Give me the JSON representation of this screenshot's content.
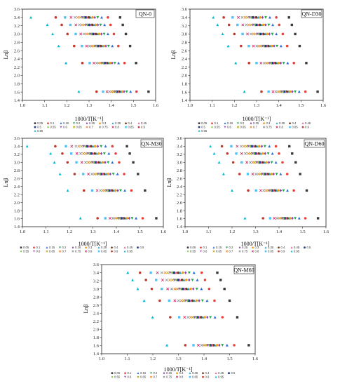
{
  "palette": {
    "0.05": "#3a3a3a",
    "0.1": "#e8413c",
    "0.15": "#2c6cdc",
    "0.2": "#1fa84a",
    "0.25": "#8e44ad",
    "0.3": "#f39c12",
    "0.35": "#2aa3c7",
    "0.4": "#6b3a1f",
    "0.45": "#f06292",
    "0.5": "#1a3d8f",
    "0.55": "#8bc34a",
    "0.6": "#9b59b6",
    "0.65": "#b5a000",
    "0.7": "#e67e22",
    "0.75": "#7f8c8d",
    "0.8": "#d81b60",
    "0.85": "#4fc3f7",
    "0.9": "#c0392b",
    "0.95": "#00bcd4"
  },
  "chart_data": [
    {
      "type": "scatter",
      "label": "QN-0",
      "xlabel": "1000/T[K⁻¹]",
      "ylabel": "Lnβ",
      "xlim": [
        1.0,
        1.6
      ],
      "ylim": [
        1.4,
        3.6
      ],
      "xticks": [
        "1.0",
        "1.1",
        "1.2",
        "1.3",
        "1.4",
        "1.5",
        "1.6"
      ],
      "yticks": [
        "1.4",
        "1.6",
        "1.8",
        "2.0",
        "2.2",
        "2.4",
        "2.6",
        "2.8",
        "3.0",
        "3.2",
        "3.4",
        "3.6"
      ],
      "lnbeta": [
        1.61,
        2.3,
        2.71,
        3.0,
        3.22,
        3.4
      ],
      "alpha": [
        "0.05",
        "0.1",
        "0.15",
        "0.2",
        "0.25",
        "0.3",
        "0.35",
        "0.4",
        "0.45",
        "0.5",
        "0.55",
        "0.6",
        "0.65",
        "0.7",
        "0.75",
        "0.8",
        "0.85",
        "0.9",
        "0.95"
      ],
      "x_at_lnbeta": [
        [
          1.568,
          1.514,
          1.487,
          1.47,
          1.458,
          1.449,
          1.442,
          1.436,
          1.43,
          1.425,
          1.42,
          1.415,
          1.409,
          1.402,
          1.393,
          1.381,
          1.363,
          1.334,
          1.254
        ],
        [
          1.512,
          1.46,
          1.433,
          1.416,
          1.404,
          1.395,
          1.388,
          1.381,
          1.375,
          1.37,
          1.364,
          1.358,
          1.352,
          1.344,
          1.335,
          1.322,
          1.303,
          1.27,
          1.196
        ],
        [
          1.485,
          1.432,
          1.405,
          1.388,
          1.376,
          1.367,
          1.359,
          1.352,
          1.346,
          1.34,
          1.334,
          1.328,
          1.321,
          1.313,
          1.303,
          1.289,
          1.268,
          1.233,
          1.163
        ],
        [
          1.466,
          1.412,
          1.385,
          1.368,
          1.356,
          1.346,
          1.338,
          1.331,
          1.324,
          1.318,
          1.311,
          1.305,
          1.298,
          1.289,
          1.278,
          1.263,
          1.24,
          1.203,
          1.136
        ],
        [
          1.452,
          1.397,
          1.37,
          1.352,
          1.34,
          1.33,
          1.322,
          1.314,
          1.307,
          1.3,
          1.293,
          1.286,
          1.278,
          1.269,
          1.257,
          1.241,
          1.216,
          1.177,
          1.112
        ],
        [
          1.44,
          1.385,
          1.357,
          1.339,
          1.326,
          1.316,
          1.307,
          1.299,
          1.291,
          1.284,
          1.276,
          1.269,
          1.26,
          1.25,
          1.237,
          1.219,
          1.192,
          1.15,
          1.038
        ]
      ]
    },
    {
      "type": "scatter",
      "label": "QN-D30",
      "xlabel": "1000/T[K⁻¹]",
      "ylabel": "Lnβ",
      "xlim": [
        1.0,
        1.6
      ],
      "ylim": [
        1.4,
        3.6
      ],
      "xticks": [
        "1.0",
        "1.1",
        "1.2",
        "1.3",
        "1.4",
        "1.5",
        "1.6"
      ],
      "yticks": [
        "1.4",
        "1.6",
        "1.8",
        "2.0",
        "2.2",
        "2.4",
        "2.6",
        "2.8",
        "3.0",
        "3.2",
        "3.4",
        "3.6"
      ],
      "lnbeta": [
        1.61,
        2.3,
        2.71,
        3.0,
        3.22,
        3.4
      ],
      "alpha": [
        "0.05",
        "0.1",
        "0.15",
        "0.2",
        "0.25",
        "0.3",
        "0.35",
        "0.4",
        "0.45",
        "0.5",
        "0.55",
        "0.6",
        "0.65",
        "0.7",
        "0.75",
        "0.8",
        "0.85",
        "0.9",
        "0.95"
      ],
      "x_at_lnbeta": [
        [
          1.575,
          1.52,
          1.492,
          1.474,
          1.461,
          1.451,
          1.443,
          1.436,
          1.43,
          1.424,
          1.418,
          1.412,
          1.405,
          1.397,
          1.387,
          1.374,
          1.354,
          1.322,
          1.245
        ],
        [
          1.524,
          1.468,
          1.44,
          1.422,
          1.409,
          1.399,
          1.391,
          1.384,
          1.377,
          1.371,
          1.365,
          1.359,
          1.352,
          1.344,
          1.334,
          1.32,
          1.3,
          1.266,
          1.206
        ],
        [
          1.494,
          1.438,
          1.41,
          1.392,
          1.379,
          1.369,
          1.361,
          1.353,
          1.346,
          1.34,
          1.333,
          1.327,
          1.32,
          1.311,
          1.301,
          1.286,
          1.265,
          1.23,
          1.172
        ],
        [
          1.474,
          1.418,
          1.389,
          1.371,
          1.358,
          1.348,
          1.339,
          1.331,
          1.324,
          1.317,
          1.31,
          1.303,
          1.295,
          1.286,
          1.275,
          1.259,
          1.237,
          1.2,
          1.147
        ],
        [
          1.459,
          1.402,
          1.373,
          1.355,
          1.341,
          1.331,
          1.322,
          1.314,
          1.306,
          1.299,
          1.292,
          1.284,
          1.276,
          1.266,
          1.254,
          1.238,
          1.214,
          1.176,
          1.124
        ],
        [
          1.446,
          1.389,
          1.36,
          1.341,
          1.327,
          1.316,
          1.307,
          1.298,
          1.29,
          1.283,
          1.275,
          1.267,
          1.258,
          1.248,
          1.235,
          1.218,
          1.192,
          1.152,
          1.105
        ]
      ]
    },
    {
      "type": "scatter",
      "label": "QN-M30",
      "xlabel": "1000/T[K⁻¹]",
      "ylabel": "Lnβ",
      "xlim": [
        1.0,
        1.6
      ],
      "ylim": [
        1.4,
        3.6
      ],
      "xticks": [
        "1.0",
        "1.1",
        "1.2",
        "1.3",
        "1.4",
        "1.5",
        "1.6"
      ],
      "yticks": [
        "1.4",
        "1.6",
        "1.8",
        "2.0",
        "2.2",
        "2.4",
        "2.6",
        "2.8",
        "3.0",
        "3.2",
        "3.4",
        "3.6"
      ],
      "lnbeta": [
        1.61,
        2.3,
        2.71,
        3.0,
        3.22,
        3.4
      ],
      "alpha": [
        "0.05",
        "0.1",
        "0.15",
        "0.2",
        "0.25",
        "0.3",
        "0.35",
        "0.4",
        "0.45",
        "0.5",
        "0.55",
        "0.6",
        "0.65",
        "0.7",
        "0.75",
        "0.8",
        "0.85",
        "0.9",
        "0.95"
      ],
      "x_at_lnbeta": [
        [
          1.57,
          1.512,
          1.484,
          1.467,
          1.455,
          1.446,
          1.439,
          1.432,
          1.426,
          1.421,
          1.415,
          1.409,
          1.403,
          1.395,
          1.386,
          1.373,
          1.353,
          1.32,
          1.247
        ],
        [
          1.522,
          1.464,
          1.436,
          1.418,
          1.406,
          1.396,
          1.388,
          1.381,
          1.375,
          1.369,
          1.363,
          1.357,
          1.35,
          1.342,
          1.332,
          1.318,
          1.297,
          1.262,
          1.193
        ],
        [
          1.492,
          1.433,
          1.405,
          1.387,
          1.374,
          1.364,
          1.356,
          1.348,
          1.342,
          1.335,
          1.329,
          1.322,
          1.315,
          1.306,
          1.296,
          1.281,
          1.259,
          1.222,
          1.16
        ],
        [
          1.472,
          1.412,
          1.383,
          1.365,
          1.352,
          1.342,
          1.333,
          1.325,
          1.318,
          1.311,
          1.304,
          1.297,
          1.289,
          1.28,
          1.269,
          1.253,
          1.23,
          1.192,
          1.136
        ],
        [
          1.457,
          1.397,
          1.368,
          1.349,
          1.336,
          1.325,
          1.316,
          1.308,
          1.3,
          1.293,
          1.285,
          1.278,
          1.27,
          1.26,
          1.248,
          1.232,
          1.208,
          1.17,
          1.12
        ],
        [
          1.445,
          1.383,
          1.354,
          1.335,
          1.321,
          1.31,
          1.301,
          1.292,
          1.284,
          1.276,
          1.268,
          1.26,
          1.251,
          1.24,
          1.228,
          1.21,
          1.185,
          1.14,
          1.02
        ]
      ]
    },
    {
      "type": "scatter",
      "label": "QN-D60",
      "xlabel": "1000/T[K⁻¹]",
      "ylabel": "Lnβ",
      "xlim": [
        1.0,
        1.6
      ],
      "ylim": [
        1.4,
        3.6
      ],
      "xticks": [
        "1.0",
        "1.1",
        "1.2",
        "1.3",
        "1.4",
        "1.5",
        "1.6"
      ],
      "yticks": [
        "1.4",
        "1.6",
        "1.8",
        "2.0",
        "2.2",
        "2.4",
        "2.6",
        "2.8",
        "3.0",
        "3.2",
        "3.4",
        "3.6"
      ],
      "lnbeta": [
        1.61,
        2.3,
        2.71,
        3.0,
        3.22,
        3.4
      ],
      "alpha": [
        "0.05",
        "0.1",
        "0.15",
        "0.2",
        "0.25",
        "0.3",
        "0.35",
        "0.4",
        "0.45",
        "0.5",
        "0.55",
        "0.6",
        "0.65",
        "0.7",
        "0.75",
        "0.8",
        "0.85",
        "0.9",
        "0.95"
      ],
      "x_at_lnbeta": [
        [
          1.566,
          1.512,
          1.486,
          1.469,
          1.457,
          1.448,
          1.441,
          1.435,
          1.429,
          1.424,
          1.419,
          1.414,
          1.408,
          1.401,
          1.392,
          1.38,
          1.362,
          1.332,
          1.255
        ],
        [
          1.518,
          1.463,
          1.436,
          1.419,
          1.407,
          1.397,
          1.39,
          1.383,
          1.377,
          1.371,
          1.365,
          1.359,
          1.353,
          1.345,
          1.335,
          1.322,
          1.302,
          1.269,
          1.2
        ],
        [
          1.49,
          1.435,
          1.407,
          1.39,
          1.377,
          1.368,
          1.36,
          1.353,
          1.346,
          1.34,
          1.334,
          1.328,
          1.321,
          1.312,
          1.302,
          1.288,
          1.267,
          1.232,
          1.164
        ],
        [
          1.471,
          1.415,
          1.387,
          1.369,
          1.357,
          1.347,
          1.339,
          1.331,
          1.324,
          1.318,
          1.311,
          1.305,
          1.297,
          1.289,
          1.278,
          1.263,
          1.241,
          1.205,
          1.145
        ],
        [
          1.456,
          1.4,
          1.372,
          1.354,
          1.341,
          1.331,
          1.322,
          1.314,
          1.307,
          1.3,
          1.293,
          1.286,
          1.278,
          1.269,
          1.257,
          1.241,
          1.218,
          1.18,
          1.124
        ],
        [
          1.444,
          1.387,
          1.359,
          1.34,
          1.327,
          1.316,
          1.307,
          1.299,
          1.291,
          1.284,
          1.277,
          1.269,
          1.261,
          1.251,
          1.239,
          1.222,
          1.197,
          1.157,
          1.108
        ]
      ]
    },
    {
      "type": "scatter",
      "label": "QN-M60",
      "xlabel": "1000/T[K⁻¹]",
      "ylabel": "Lnβ",
      "xlim": [
        1.0,
        1.6
      ],
      "ylim": [
        1.4,
        3.6
      ],
      "xticks": [
        "1.0",
        "1.1",
        "1.2",
        "1.3",
        "1.4",
        "1.5",
        "1.6"
      ],
      "yticks": [
        "1.4",
        "1.6",
        "1.8",
        "2.0",
        "2.2",
        "2.4",
        "2.6",
        "2.8",
        "3.0",
        "3.2",
        "3.4",
        "3.6"
      ],
      "lnbeta": [
        1.61,
        2.3,
        2.71,
        3.0,
        3.22,
        3.4
      ],
      "alpha": [
        "0.05",
        "0.1",
        "0.15",
        "0.2",
        "0.25",
        "0.3",
        "0.35",
        "0.4",
        "0.45",
        "0.5",
        "0.55",
        "0.6",
        "0.65",
        "0.7",
        "0.75",
        "0.8",
        "0.85",
        "0.9",
        "0.95"
      ],
      "x_at_lnbeta": [
        [
          1.575,
          1.518,
          1.49,
          1.472,
          1.46,
          1.451,
          1.443,
          1.437,
          1.431,
          1.425,
          1.42,
          1.414,
          1.408,
          1.4,
          1.391,
          1.378,
          1.359,
          1.327,
          1.255
        ],
        [
          1.53,
          1.472,
          1.443,
          1.425,
          1.413,
          1.403,
          1.395,
          1.388,
          1.381,
          1.375,
          1.369,
          1.363,
          1.356,
          1.348,
          1.338,
          1.324,
          1.303,
          1.268,
          1.199
        ],
        [
          1.5,
          1.441,
          1.412,
          1.394,
          1.381,
          1.371,
          1.362,
          1.355,
          1.348,
          1.341,
          1.335,
          1.328,
          1.321,
          1.312,
          1.301,
          1.286,
          1.264,
          1.227,
          1.166
        ],
        [
          1.48,
          1.42,
          1.39,
          1.372,
          1.358,
          1.348,
          1.339,
          1.331,
          1.324,
          1.317,
          1.31,
          1.303,
          1.295,
          1.286,
          1.274,
          1.258,
          1.235,
          1.196,
          1.141
        ],
        [
          1.465,
          1.404,
          1.374,
          1.355,
          1.342,
          1.331,
          1.322,
          1.314,
          1.306,
          1.299,
          1.291,
          1.284,
          1.276,
          1.266,
          1.254,
          1.238,
          1.213,
          1.173,
          1.121
        ],
        [
          1.452,
          1.391,
          1.361,
          1.342,
          1.328,
          1.317,
          1.307,
          1.299,
          1.291,
          1.283,
          1.275,
          1.267,
          1.258,
          1.248,
          1.235,
          1.218,
          1.192,
          1.15,
          1.102
        ]
      ]
    }
  ]
}
